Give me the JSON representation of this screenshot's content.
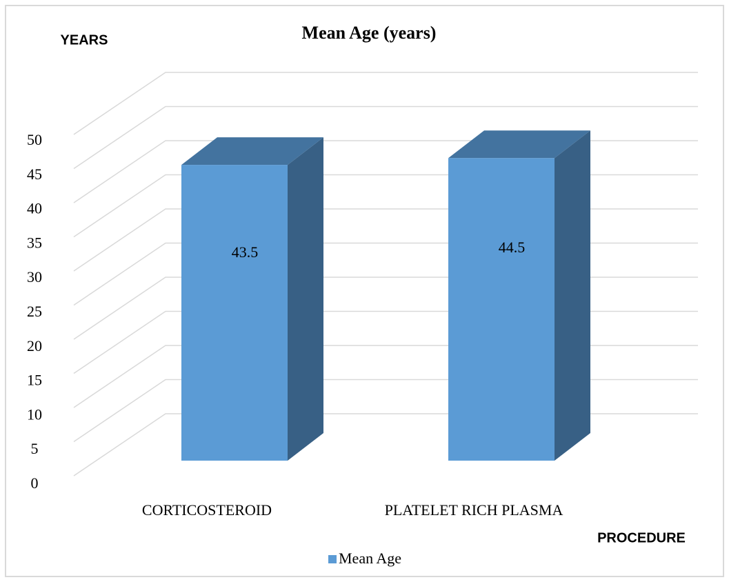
{
  "chart_data": {
    "type": "bar3d",
    "title": "Mean Age (years)",
    "y_label": "YEARS",
    "x_label": "PROCEDURE",
    "categories": [
      "CORTICOSTEROID",
      "PLATELET RICH PLASMA"
    ],
    "series": [
      {
        "name": "Mean Age",
        "color": "#5b9bd5",
        "values": [
          43.5,
          44.5
        ]
      }
    ],
    "ylim": [
      0,
      50
    ],
    "yticks": [
      0,
      5,
      10,
      15,
      20,
      25,
      30,
      35,
      40,
      45,
      50
    ],
    "grid": true,
    "legend": "bottom"
  }
}
